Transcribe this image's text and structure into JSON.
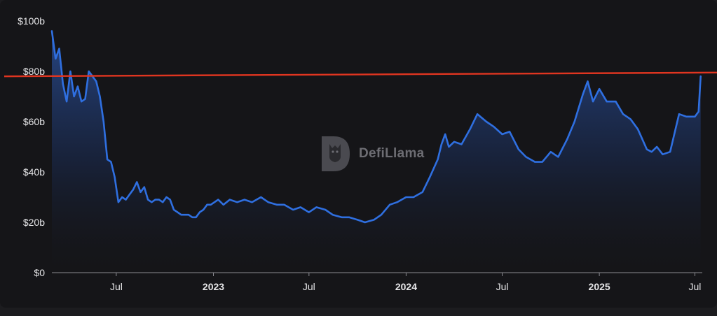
{
  "chart_data": {
    "type": "area",
    "y_unit": "billion USD",
    "ylim": [
      0,
      100
    ],
    "y_ticks": [
      "$0",
      "$20b",
      "$40b",
      "$60b",
      "$80b",
      "$100b"
    ],
    "y_tick_values": [
      0,
      20,
      40,
      60,
      80,
      100
    ],
    "x_range": [
      "2022-03-01",
      "2025-07-15"
    ],
    "x_ticks": [
      {
        "label": "Jul",
        "date": "2022-07-01",
        "bold": false
      },
      {
        "label": "2023",
        "date": "2023-01-01",
        "bold": true
      },
      {
        "label": "Jul",
        "date": "2023-07-01",
        "bold": false
      },
      {
        "label": "2024",
        "date": "2024-01-01",
        "bold": true
      },
      {
        "label": "Jul",
        "date": "2024-07-01",
        "bold": false
      },
      {
        "label": "2025",
        "date": "2025-01-01",
        "bold": true
      },
      {
        "label": "Jul",
        "date": "2025-07-01",
        "bold": false
      }
    ],
    "grid": false,
    "legend": "none",
    "reference_line": {
      "approx_y": [
        78,
        79.5
      ],
      "color": "#e03520"
    },
    "series": [
      {
        "color": "#2f6fe0",
        "x": [
          "2022-03-01",
          "2022-03-08",
          "2022-03-15",
          "2022-03-22",
          "2022-03-29",
          "2022-04-05",
          "2022-04-12",
          "2022-04-19",
          "2022-04-26",
          "2022-05-03",
          "2022-05-10",
          "2022-05-17",
          "2022-05-24",
          "2022-05-31",
          "2022-06-07",
          "2022-06-14",
          "2022-06-21",
          "2022-06-28",
          "2022-07-05",
          "2022-07-12",
          "2022-07-19",
          "2022-07-26",
          "2022-08-02",
          "2022-08-09",
          "2022-08-16",
          "2022-08-23",
          "2022-08-30",
          "2022-09-06",
          "2022-09-13",
          "2022-09-20",
          "2022-09-27",
          "2022-10-04",
          "2022-10-11",
          "2022-10-18",
          "2022-10-25",
          "2022-11-01",
          "2022-11-08",
          "2022-11-15",
          "2022-11-22",
          "2022-11-29",
          "2022-12-06",
          "2022-12-13",
          "2022-12-20",
          "2022-12-27",
          "2023-01-10",
          "2023-01-20",
          "2023-02-01",
          "2023-02-15",
          "2023-03-01",
          "2023-03-15",
          "2023-04-01",
          "2023-04-15",
          "2023-05-01",
          "2023-05-15",
          "2023-06-01",
          "2023-06-15",
          "2023-07-01",
          "2023-07-15",
          "2023-08-01",
          "2023-08-15",
          "2023-09-01",
          "2023-09-15",
          "2023-10-01",
          "2023-10-15",
          "2023-11-01",
          "2023-11-15",
          "2023-12-01",
          "2023-12-15",
          "2024-01-01",
          "2024-01-15",
          "2024-02-01",
          "2024-02-15",
          "2024-03-01",
          "2024-03-08",
          "2024-03-15",
          "2024-03-22",
          "2024-04-01",
          "2024-04-15",
          "2024-05-01",
          "2024-05-15",
          "2024-06-01",
          "2024-06-15",
          "2024-07-01",
          "2024-07-15",
          "2024-08-01",
          "2024-08-15",
          "2024-09-01",
          "2024-09-15",
          "2024-10-01",
          "2024-10-15",
          "2024-11-01",
          "2024-11-15",
          "2024-12-01",
          "2024-12-10",
          "2024-12-20",
          "2025-01-01",
          "2025-01-15",
          "2025-02-01",
          "2025-02-15",
          "2025-03-01",
          "2025-03-15",
          "2025-04-01",
          "2025-04-10",
          "2025-04-20",
          "2025-05-01",
          "2025-05-15",
          "2025-06-01",
          "2025-06-15",
          "2025-07-01",
          "2025-07-08",
          "2025-07-12"
        ],
        "y": [
          96,
          85,
          89,
          75,
          68,
          80,
          70,
          74,
          68,
          69,
          80,
          78,
          76,
          70,
          60,
          45,
          44,
          38,
          28,
          30,
          29,
          31,
          33,
          36,
          32,
          34,
          29,
          28,
          29,
          29,
          28,
          30,
          29,
          25,
          24,
          23,
          23,
          23,
          22,
          22,
          24,
          25,
          27,
          27,
          29,
          27,
          29,
          28,
          29,
          28,
          30,
          28,
          27,
          27,
          25,
          26,
          24,
          26,
          25,
          23,
          22,
          22,
          21,
          20,
          21,
          23,
          27,
          28,
          30,
          30,
          32,
          38,
          45,
          51,
          55,
          50,
          52,
          51,
          57,
          63,
          60,
          58,
          55,
          56,
          49,
          46,
          44,
          44,
          48,
          46,
          53,
          60,
          71,
          76,
          68,
          73,
          68,
          68,
          63,
          61,
          57,
          49,
          48,
          50,
          47,
          48,
          63,
          62,
          62,
          64,
          78
        ]
      }
    ]
  },
  "watermark": {
    "text": "DefiLlama"
  }
}
